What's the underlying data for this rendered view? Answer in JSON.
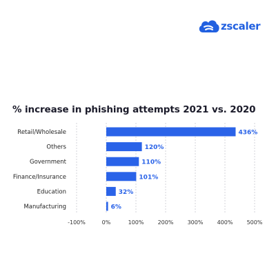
{
  "brand": {
    "name": "zscaler",
    "color": "#2a63e8"
  },
  "chart_data": {
    "type": "bar",
    "orientation": "horizontal",
    "title": "% increase in phishing attempts 2021 vs. 2020",
    "categories": [
      "Retail/Wholesale",
      "Others",
      "Government",
      "Finance/Insurance",
      "Education",
      "Manufacturing"
    ],
    "values": [
      436,
      120,
      110,
      101,
      32,
      6
    ],
    "value_labels": [
      "436%",
      "120%",
      "110%",
      "101%",
      "32%",
      "6%"
    ],
    "xlim": [
      -100,
      500
    ],
    "xticks": [
      -100,
      0,
      100,
      200,
      300,
      400,
      500
    ],
    "xtick_labels": [
      "-100%",
      "0%",
      "100%",
      "200%",
      "300%",
      "400%",
      "500%"
    ],
    "grid": "vertical dashed",
    "bar_color": "#2a63e8"
  }
}
